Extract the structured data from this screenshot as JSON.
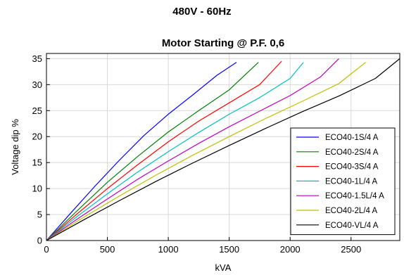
{
  "header": {
    "title": "480V - 60Hz"
  },
  "chart_data": {
    "type": "line",
    "title": "Motor Starting @ P.F. 0,6",
    "xlabel": "kVA",
    "ylabel": "Voltage dip %",
    "xlim": [
      0,
      2900
    ],
    "ylim": [
      0,
      36
    ],
    "xticks": [
      0,
      500,
      1000,
      1500,
      2000,
      2500
    ],
    "yticks": [
      0,
      5,
      10,
      15,
      20,
      25,
      30,
      35
    ],
    "grid": true,
    "legend_position": "bottom-right",
    "series": [
      {
        "name": "ECO40-1S/4 A",
        "color": "#0000ff",
        "x": [
          0,
          200,
          400,
          600,
          800,
          1000,
          1200,
          1400,
          1560
        ],
        "y": [
          0,
          5.3,
          10.5,
          15.5,
          20.2,
          24.3,
          28.0,
          31.8,
          34.3
        ]
      },
      {
        "name": "ECO40-2S/4 A",
        "color": "#008000",
        "x": [
          0,
          250,
          500,
          750,
          1000,
          1250,
          1500,
          1740
        ],
        "y": [
          0,
          5.7,
          11.2,
          16.2,
          20.9,
          25.0,
          29.0,
          34.3
        ]
      },
      {
        "name": "ECO40-3S/4 A",
        "color": "#ff0000",
        "x": [
          0,
          250,
          500,
          750,
          1000,
          1250,
          1500,
          1750,
          1930
        ],
        "y": [
          0,
          5.1,
          10.0,
          14.6,
          19.0,
          23.0,
          26.5,
          30.0,
          34.5
        ]
      },
      {
        "name": "ECO40-1L/4 A",
        "color": "#00bfbf",
        "x": [
          0,
          250,
          500,
          750,
          1000,
          1250,
          1500,
          1750,
          2000,
          2110
        ],
        "y": [
          0,
          4.6,
          9.0,
          13.2,
          17.1,
          20.8,
          24.3,
          27.5,
          31.2,
          34.3
        ]
      },
      {
        "name": "ECO40-1.5L/4 A",
        "color": "#bf00bf",
        "x": [
          0,
          250,
          500,
          750,
          1000,
          1250,
          1500,
          1750,
          2000,
          2250,
          2400
        ],
        "y": [
          0,
          4.1,
          8.0,
          11.8,
          15.3,
          18.7,
          21.9,
          24.9,
          27.9,
          31.5,
          35.0
        ]
      },
      {
        "name": "ECO40-2L/4 A",
        "color": "#bfbf00",
        "x": [
          0,
          300,
          600,
          900,
          1200,
          1500,
          1800,
          2100,
          2400,
          2620
        ],
        "y": [
          0,
          4.4,
          8.6,
          12.6,
          16.4,
          20.0,
          23.5,
          26.8,
          30.2,
          34.3
        ]
      },
      {
        "name": "ECO40-VL/4 A",
        "color": "#000000",
        "x": [
          0,
          300,
          600,
          900,
          1200,
          1500,
          1800,
          2100,
          2400,
          2700,
          2900
        ],
        "y": [
          0,
          3.9,
          7.7,
          11.4,
          14.9,
          18.3,
          21.6,
          24.8,
          27.8,
          31.2,
          35.0
        ]
      }
    ]
  }
}
